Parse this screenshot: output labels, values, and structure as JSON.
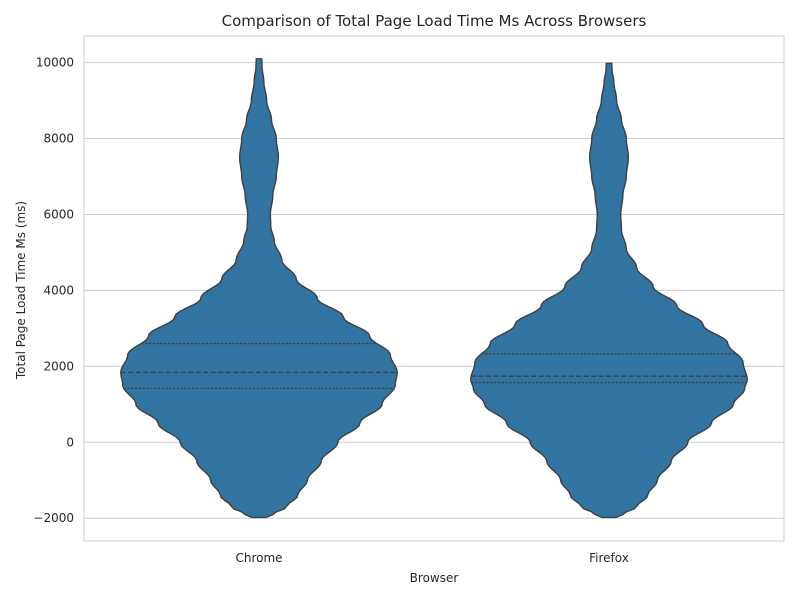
{
  "chart_data": {
    "type": "violin",
    "title": "Comparison of Total Page Load Time Ms Across Browsers",
    "xlabel": "Browser",
    "ylabel": "Total Page Load Time Ms (ms)",
    "ylim": [
      -2600,
      10700
    ],
    "yticks": [
      -2000,
      0,
      2000,
      4000,
      6000,
      8000,
      10000
    ],
    "ytick_labels": [
      "−2000",
      "0",
      "2000",
      "4000",
      "6000",
      "8000",
      "10000"
    ],
    "grid": true,
    "categories": [
      "Chrome",
      "Firefox"
    ],
    "colors": {
      "violin_fill": "#3274a1",
      "edge": "#3f3f3f",
      "grid": "#cccccc"
    },
    "series": [
      {
        "category": "Chrome",
        "quartiles": {
          "q1": 1420,
          "median": 1840,
          "q3": 2600
        },
        "range": [
          -1980,
          10100
        ],
        "density_profile": [
          [
            -1980,
            0.05
          ],
          [
            -1900,
            0.1
          ],
          [
            -1700,
            0.2
          ],
          [
            -1400,
            0.28
          ],
          [
            -1000,
            0.35
          ],
          [
            -500,
            0.45
          ],
          [
            0,
            0.57
          ],
          [
            500,
            0.73
          ],
          [
            1000,
            0.89
          ],
          [
            1500,
            0.985
          ],
          [
            1840,
            1.0
          ],
          [
            2300,
            0.95
          ],
          [
            2800,
            0.8
          ],
          [
            3300,
            0.61
          ],
          [
            3800,
            0.42
          ],
          [
            4300,
            0.27
          ],
          [
            4800,
            0.165
          ],
          [
            5300,
            0.11
          ],
          [
            5700,
            0.085
          ],
          [
            6000,
            0.082
          ],
          [
            6500,
            0.1
          ],
          [
            7000,
            0.125
          ],
          [
            7500,
            0.14
          ],
          [
            8000,
            0.125
          ],
          [
            8500,
            0.09
          ],
          [
            9000,
            0.055
          ],
          [
            9500,
            0.035
          ],
          [
            9900,
            0.022
          ],
          [
            10100,
            0.02
          ]
        ]
      },
      {
        "category": "Firefox",
        "quartiles": {
          "q1": 1570,
          "median": 1740,
          "q3": 2330
        },
        "range": [
          -1980,
          9980
        ],
        "density_profile": [
          [
            -1980,
            0.05
          ],
          [
            -1900,
            0.1
          ],
          [
            -1700,
            0.2
          ],
          [
            -1400,
            0.28
          ],
          [
            -1000,
            0.35
          ],
          [
            -500,
            0.45
          ],
          [
            0,
            0.57
          ],
          [
            500,
            0.74
          ],
          [
            1000,
            0.9
          ],
          [
            1400,
            0.98
          ],
          [
            1650,
            1.0
          ],
          [
            2100,
            0.97
          ],
          [
            2600,
            0.86
          ],
          [
            3100,
            0.68
          ],
          [
            3600,
            0.49
          ],
          [
            4100,
            0.32
          ],
          [
            4600,
            0.2
          ],
          [
            5100,
            0.125
          ],
          [
            5600,
            0.09
          ],
          [
            6000,
            0.085
          ],
          [
            6500,
            0.1
          ],
          [
            7000,
            0.125
          ],
          [
            7500,
            0.14
          ],
          [
            8000,
            0.125
          ],
          [
            8500,
            0.09
          ],
          [
            9000,
            0.055
          ],
          [
            9500,
            0.035
          ],
          [
            9800,
            0.022
          ],
          [
            9980,
            0.02
          ]
        ]
      }
    ]
  }
}
